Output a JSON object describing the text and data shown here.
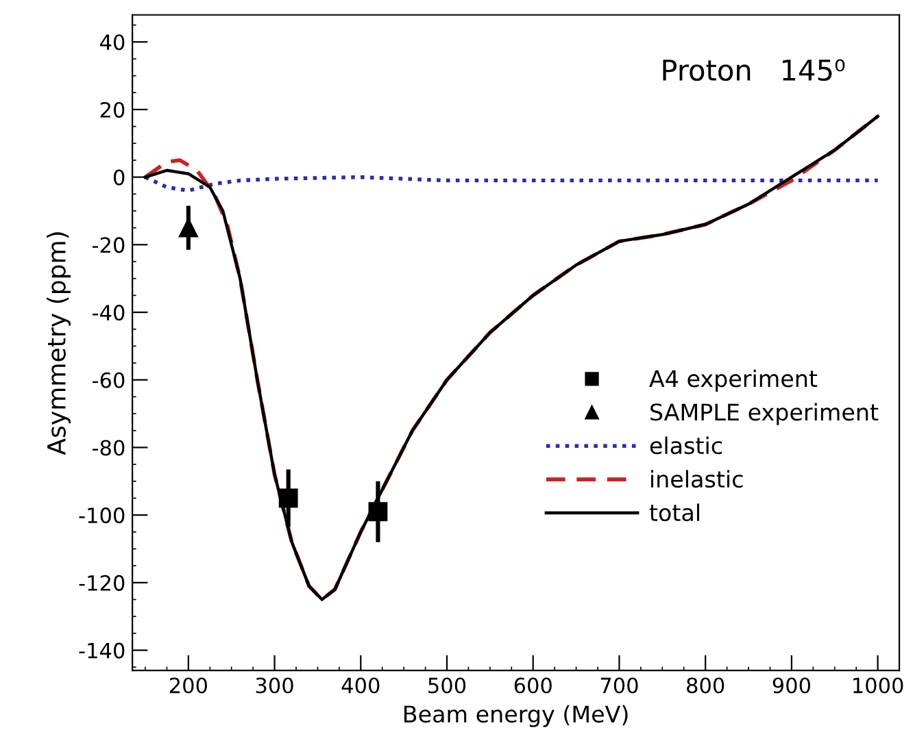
{
  "chart_data": {
    "type": "line",
    "xlabel": "Beam energy (MeV)",
    "ylabel": "Asymmetry (ppm)",
    "xlim": [
      135,
      1025
    ],
    "xticks": [
      200,
      300,
      400,
      500,
      600,
      700,
      800,
      900,
      1000
    ],
    "ylim": [
      -146,
      48
    ],
    "yticks": [
      40,
      20,
      0,
      -20,
      -40,
      -60,
      -80,
      -100,
      -120,
      -140
    ],
    "grid": false,
    "legend": "right",
    "annotations": [
      "Proton   145⁰"
    ],
    "series": [
      {
        "name": "A4 experiment",
        "type": "scatter",
        "marker": "square",
        "color": "#000000",
        "x": [
          316,
          420
        ],
        "values": [
          -95,
          -99
        ],
        "errors": [
          8.5,
          9
        ]
      },
      {
        "name": "SAMPLE experiment",
        "type": "scatter",
        "marker": "triangle",
        "color": "#000000",
        "x": [
          200
        ],
        "values": [
          -15
        ],
        "errors": [
          6.5
        ]
      },
      {
        "name": "elastic",
        "line_style": "dotted",
        "color": "#2b2bb0",
        "x": [
          150,
          175,
          200,
          230,
          260,
          300,
          400,
          500,
          600,
          700,
          800,
          900,
          1000
        ],
        "values": [
          0,
          -3,
          -4,
          -2,
          -1,
          -0.5,
          0,
          -1,
          -1,
          -1,
          -1,
          -1,
          -1
        ]
      },
      {
        "name": "inelastic",
        "line_style": "dashed",
        "color": "#cc2222",
        "x": [
          150,
          175,
          190,
          210,
          230,
          245,
          260,
          280,
          300,
          320,
          340,
          355,
          370,
          400,
          430,
          460,
          500,
          550,
          600,
          650,
          700,
          750,
          800,
          850,
          900,
          950,
          1000
        ],
        "values": [
          0,
          4.5,
          5,
          2,
          -5,
          -14,
          -30,
          -60,
          -88,
          -108,
          -121,
          -125,
          -122,
          -105,
          -90,
          -75,
          -60,
          -46,
          -35,
          -26,
          -19,
          -17,
          -14,
          -8,
          -1,
          8,
          18
        ]
      },
      {
        "name": "total",
        "line_style": "solid",
        "color": "#000000",
        "x": [
          150,
          175,
          200,
          225,
          240,
          260,
          280,
          300,
          320,
          340,
          355,
          370,
          400,
          430,
          460,
          500,
          550,
          600,
          650,
          700,
          750,
          800,
          850,
          900,
          950,
          1000
        ],
        "values": [
          0,
          2,
          1,
          -3,
          -10,
          -30,
          -60,
          -88,
          -108,
          -121,
          -125,
          -122,
          -105,
          -90,
          -75,
          -60,
          -46,
          -35,
          -26,
          -19,
          -17,
          -14,
          -8,
          0,
          8,
          18
        ]
      }
    ]
  }
}
